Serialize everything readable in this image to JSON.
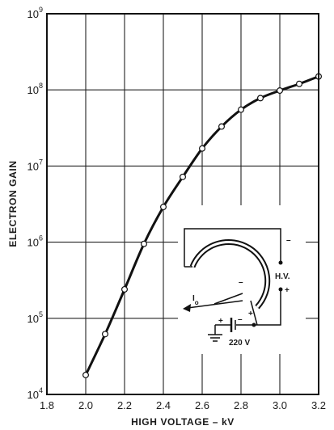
{
  "chart_data": {
    "type": "line",
    "xlabel": "HIGH VOLTAGE – kV",
    "ylabel": "ELECTRON GAIN",
    "xlim": [
      1.8,
      3.2
    ],
    "ylim": [
      10000,
      1000000000
    ],
    "y_scale": "log",
    "grid": true,
    "x_ticks": [
      "1.8",
      "2.0",
      "2.2",
      "2.4",
      "2.6",
      "2.8",
      "3.0",
      "3.2"
    ],
    "y_ticks": [
      {
        "base": "10",
        "exp": "4"
      },
      {
        "base": "10",
        "exp": "5"
      },
      {
        "base": "10",
        "exp": "6"
      },
      {
        "base": "10",
        "exp": "7"
      },
      {
        "base": "10",
        "exp": "8"
      },
      {
        "base": "10",
        "exp": "9"
      }
    ],
    "points": [
      {
        "x": 2.0,
        "y": 18000
      },
      {
        "x": 2.1,
        "y": 62000
      },
      {
        "x": 2.2,
        "y": 240000
      },
      {
        "x": 2.3,
        "y": 950000
      },
      {
        "x": 2.4,
        "y": 2900000
      },
      {
        "x": 2.5,
        "y": 7200000
      },
      {
        "x": 2.6,
        "y": 17000000
      },
      {
        "x": 2.7,
        "y": 33000000
      },
      {
        "x": 2.8,
        "y": 55000000
      },
      {
        "x": 2.9,
        "y": 78000000
      },
      {
        "x": 3.0,
        "y": 98000000
      },
      {
        "x": 3.1,
        "y": 120000000
      },
      {
        "x": 3.2,
        "y": 150000000
      }
    ]
  },
  "inset": {
    "hv_label": "H.V.",
    "minus_sign": "–",
    "plus_sign": "+",
    "current_label": "I",
    "current_subscript": "o",
    "battery_voltage": "220 V",
    "battery_plus": "+",
    "battery_minus": "–",
    "tube_plus": "+",
    "tube_minus": "–"
  }
}
